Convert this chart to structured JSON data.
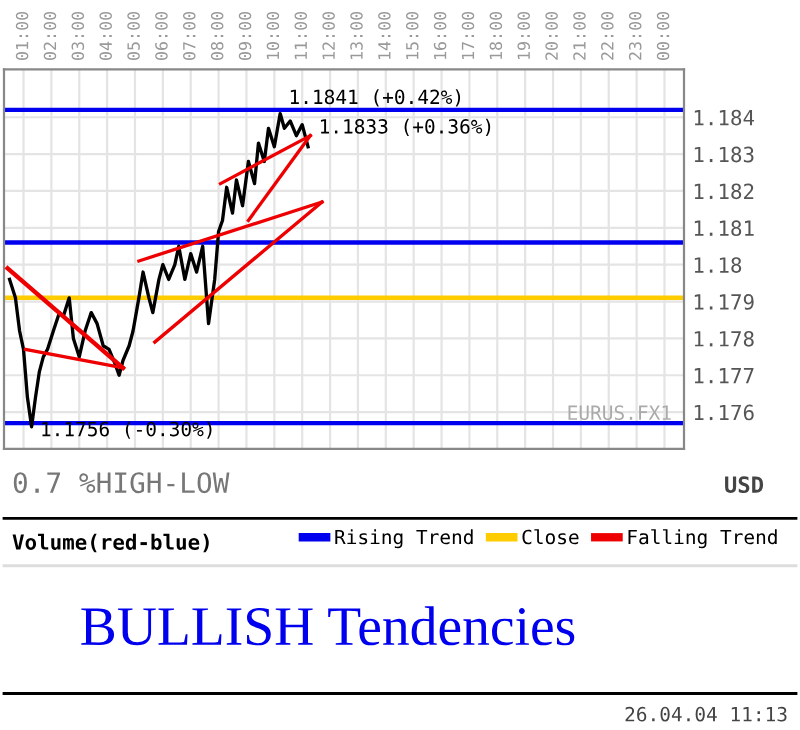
{
  "chart_data": {
    "type": "line",
    "title": "BULLISH Tendencies",
    "legend_title": "Volume(red-blue)",
    "ylabel": "USD",
    "xlim": [
      0.3,
      24.7
    ],
    "ylim": [
      1.175,
      1.1853
    ],
    "xticks": [
      {
        "value": 1,
        "label": "01:00"
      },
      {
        "value": 2,
        "label": "02:00"
      },
      {
        "value": 3,
        "label": "03:00"
      },
      {
        "value": 4,
        "label": "04:00"
      },
      {
        "value": 5,
        "label": "05:00"
      },
      {
        "value": 6,
        "label": "06:00"
      },
      {
        "value": 7,
        "label": "07:00"
      },
      {
        "value": 8,
        "label": "08:00"
      },
      {
        "value": 9,
        "label": "09:00"
      },
      {
        "value": 10,
        "label": "10:00"
      },
      {
        "value": 11,
        "label": "11:00"
      },
      {
        "value": 12,
        "label": "12:00"
      },
      {
        "value": 13,
        "label": "13:00"
      },
      {
        "value": 14,
        "label": "14:00"
      },
      {
        "value": 15,
        "label": "15:00"
      },
      {
        "value": 16,
        "label": "16:00"
      },
      {
        "value": 17,
        "label": "17:00"
      },
      {
        "value": 18,
        "label": "18:00"
      },
      {
        "value": 19,
        "label": "19:00"
      },
      {
        "value": 20,
        "label": "20:00"
      },
      {
        "value": 21,
        "label": "21:00"
      },
      {
        "value": 22,
        "label": "22:00"
      },
      {
        "value": 23,
        "label": "23:00"
      },
      {
        "value": 24,
        "label": "00:00"
      }
    ],
    "yticks": [
      1.176,
      1.177,
      1.178,
      1.179,
      1.18,
      1.181,
      1.182,
      1.183,
      1.184
    ],
    "grid": true,
    "legend": "bottom",
    "marker": "none",
    "line_style": "solid",
    "series": [
      {
        "color": "#000000",
        "x": [
          0.5,
          0.71,
          0.86,
          1.0,
          1.14,
          1.29,
          1.43,
          1.57,
          1.71,
          1.86,
          2.07,
          2.29,
          2.43,
          2.64,
          2.79,
          3.0,
          3.21,
          3.43,
          3.64,
          3.86,
          4.07,
          4.29,
          4.43,
          4.57,
          4.79,
          4.93,
          5.14,
          5.29,
          5.5,
          5.64,
          5.86,
          6.0,
          6.21,
          6.43,
          6.57,
          6.79,
          7.0,
          7.21,
          7.43,
          7.64,
          7.86,
          8.0,
          8.14,
          8.29,
          8.5,
          8.64,
          8.86,
          9.07,
          9.29,
          9.43,
          9.64,
          9.79,
          10.0,
          10.21,
          10.36,
          10.57,
          10.79,
          11.0,
          11.21
        ],
        "values": [
          1.1796,
          1.1791,
          1.1782,
          1.1777,
          1.1764,
          1.1756,
          1.1764,
          1.1771,
          1.1775,
          1.1777,
          1.1782,
          1.1787,
          1.1786,
          1.1791,
          1.178,
          1.1775,
          1.1782,
          1.1787,
          1.1784,
          1.1778,
          1.1777,
          1.1773,
          1.177,
          1.1774,
          1.1778,
          1.1782,
          1.1791,
          1.1798,
          1.1791,
          1.1787,
          1.1796,
          1.18,
          1.1796,
          1.18,
          1.1805,
          1.1796,
          1.1803,
          1.1798,
          1.1805,
          1.1784,
          1.1796,
          1.1809,
          1.1812,
          1.1821,
          1.1814,
          1.1823,
          1.1816,
          1.1828,
          1.1822,
          1.1833,
          1.1828,
          1.1837,
          1.1832,
          1.1841,
          1.1837,
          1.1839,
          1.1835,
          1.1838,
          1.1832
        ]
      },
      {
        "name": "Falling Trend",
        "color": "#ee0000",
        "x": [
          0.43,
          4.57
        ],
        "values": [
          1.1799,
          1.1772
        ]
      },
      {
        "color": "#ee0000",
        "x": [
          1.07,
          4.57
        ],
        "values": [
          1.1777,
          1.1772
        ]
      },
      {
        "color": "#ee0000",
        "x": [
          5.71,
          11.71
        ],
        "values": [
          1.1779,
          1.1817
        ]
      },
      {
        "color": "#ee0000",
        "x": [
          5.14,
          11.71
        ],
        "values": [
          1.1801,
          1.1817
        ]
      },
      {
        "color": "#ee0000",
        "x": [
          8.07,
          11.29
        ],
        "values": [
          1.1822,
          1.1835
        ]
      },
      {
        "color": "#ee0000",
        "x": [
          9.07,
          11.29
        ],
        "values": [
          1.1812,
          1.1835
        ]
      }
    ],
    "ref_lines": [
      {
        "axis": "y",
        "value": 1.1842,
        "label": "Rising Trend",
        "color": "#0000ee"
      },
      {
        "axis": "y",
        "value": 1.1806,
        "label": null,
        "color": "#0000ee"
      },
      {
        "axis": "y",
        "value": 1.1757,
        "label": null,
        "color": "#0000ee"
      },
      {
        "axis": "y",
        "value": 1.1791,
        "label": "Close",
        "color": "#ffcc00"
      }
    ],
    "annotations": [
      {
        "text": "1.1841 (+0.42%)",
        "x": 10.21,
        "y": 1.1841
      },
      {
        "text": "1.1833 (+0.36%)",
        "x": 11.29,
        "y": 1.1833
      },
      {
        "text": "1.1756 (-0.30%)",
        "x": 1.29,
        "y": 1.1756
      },
      "0.7 %HIGH-LOW",
      "EURUS.FX1",
      "26.04.04 11:13"
    ]
  }
}
